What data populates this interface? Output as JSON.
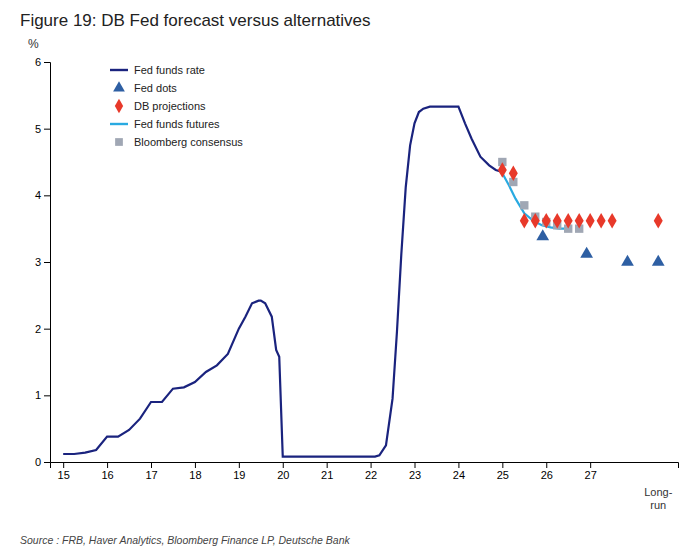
{
  "chart_data": {
    "type": "line",
    "title": "Figure 19: DB Fed forecast versus alternatives",
    "ylabel": "%",
    "source": "Source : FRB, Haver Analytics, Bloomberg Finance LP, Deutsche Bank",
    "xlim": [
      14.7,
      29.0
    ],
    "xticks": [
      15,
      16,
      17,
      18,
      19,
      20,
      21,
      22,
      23,
      24,
      25,
      26,
      27
    ],
    "ylim": [
      0,
      6
    ],
    "yticks": [
      0,
      1,
      2,
      3,
      4,
      5,
      6
    ],
    "grid": false,
    "legend": "upper left",
    "series": [
      {
        "name": "Fed funds rate",
        "type": "line",
        "color": "#1a237e",
        "x": [
          15.0,
          15.08,
          15.17,
          15.25,
          15.5,
          15.75,
          16.0,
          16.25,
          16.5,
          16.75,
          17.0,
          17.25,
          17.5,
          17.75,
          18.0,
          18.25,
          18.5,
          18.75,
          19.0,
          19.15,
          19.3,
          19.45,
          19.5,
          19.6,
          19.75,
          19.85,
          19.92,
          20.0,
          20.08,
          20.25,
          20.5,
          20.75,
          21.0,
          21.25,
          21.5,
          21.75,
          22.0,
          22.1,
          22.2,
          22.35,
          22.5,
          22.6,
          22.7,
          22.8,
          22.9,
          23.0,
          23.1,
          23.2,
          23.35,
          23.5,
          23.65,
          23.8,
          24.0,
          24.15,
          24.3,
          24.5,
          24.7,
          24.85,
          25.0
        ],
        "values": [
          0.12,
          0.12,
          0.12,
          0.12,
          0.14,
          0.18,
          0.38,
          0.38,
          0.48,
          0.65,
          0.9,
          0.9,
          1.1,
          1.12,
          1.2,
          1.35,
          1.45,
          1.62,
          2.0,
          2.18,
          2.38,
          2.42,
          2.42,
          2.38,
          2.18,
          1.68,
          1.58,
          0.08,
          0.08,
          0.08,
          0.08,
          0.08,
          0.08,
          0.08,
          0.08,
          0.08,
          0.08,
          0.08,
          0.1,
          0.25,
          0.95,
          1.95,
          3.12,
          4.12,
          4.75,
          5.08,
          5.25,
          5.3,
          5.33,
          5.33,
          5.33,
          5.33,
          5.33,
          5.08,
          4.85,
          4.58,
          4.45,
          4.38,
          4.35
        ]
      },
      {
        "name": "Fed dots",
        "type": "scatter",
        "marker": "triangle",
        "color": "#2e5fa3",
        "x": [
          25.92,
          26.92,
          27.85,
          28.55
        ],
        "values": [
          3.38,
          3.12,
          3.0,
          3.0
        ]
      },
      {
        "name": "DB projections",
        "type": "scatter",
        "marker": "diamond",
        "color": "#e8392a",
        "x": [
          25.0,
          25.25,
          25.5,
          25.75,
          26.0,
          26.25,
          26.5,
          26.75,
          27.0,
          27.25,
          27.5,
          28.55
        ],
        "values": [
          4.38,
          4.33,
          3.62,
          3.62,
          3.62,
          3.62,
          3.62,
          3.62,
          3.62,
          3.62,
          3.62,
          3.62
        ]
      },
      {
        "name": "Fed funds futures",
        "type": "line",
        "color": "#29aae1",
        "x": [
          25.0,
          25.15,
          25.3,
          25.5,
          25.7,
          25.9,
          26.1,
          26.3,
          26.5
        ],
        "values": [
          4.33,
          4.15,
          3.95,
          3.73,
          3.62,
          3.55,
          3.52,
          3.5,
          3.5
        ]
      },
      {
        "name": "Bloomberg consensus",
        "type": "scatter",
        "marker": "square",
        "color": "#a0a7b4",
        "x": [
          25.0,
          25.25,
          25.5,
          25.75,
          26.0,
          26.25,
          26.5,
          26.75
        ],
        "values": [
          4.5,
          4.2,
          3.85,
          3.68,
          3.6,
          3.55,
          3.5,
          3.5
        ]
      }
    ],
    "annotations": [
      {
        "text": "Long-\nrun",
        "x": 28.55
      }
    ]
  }
}
